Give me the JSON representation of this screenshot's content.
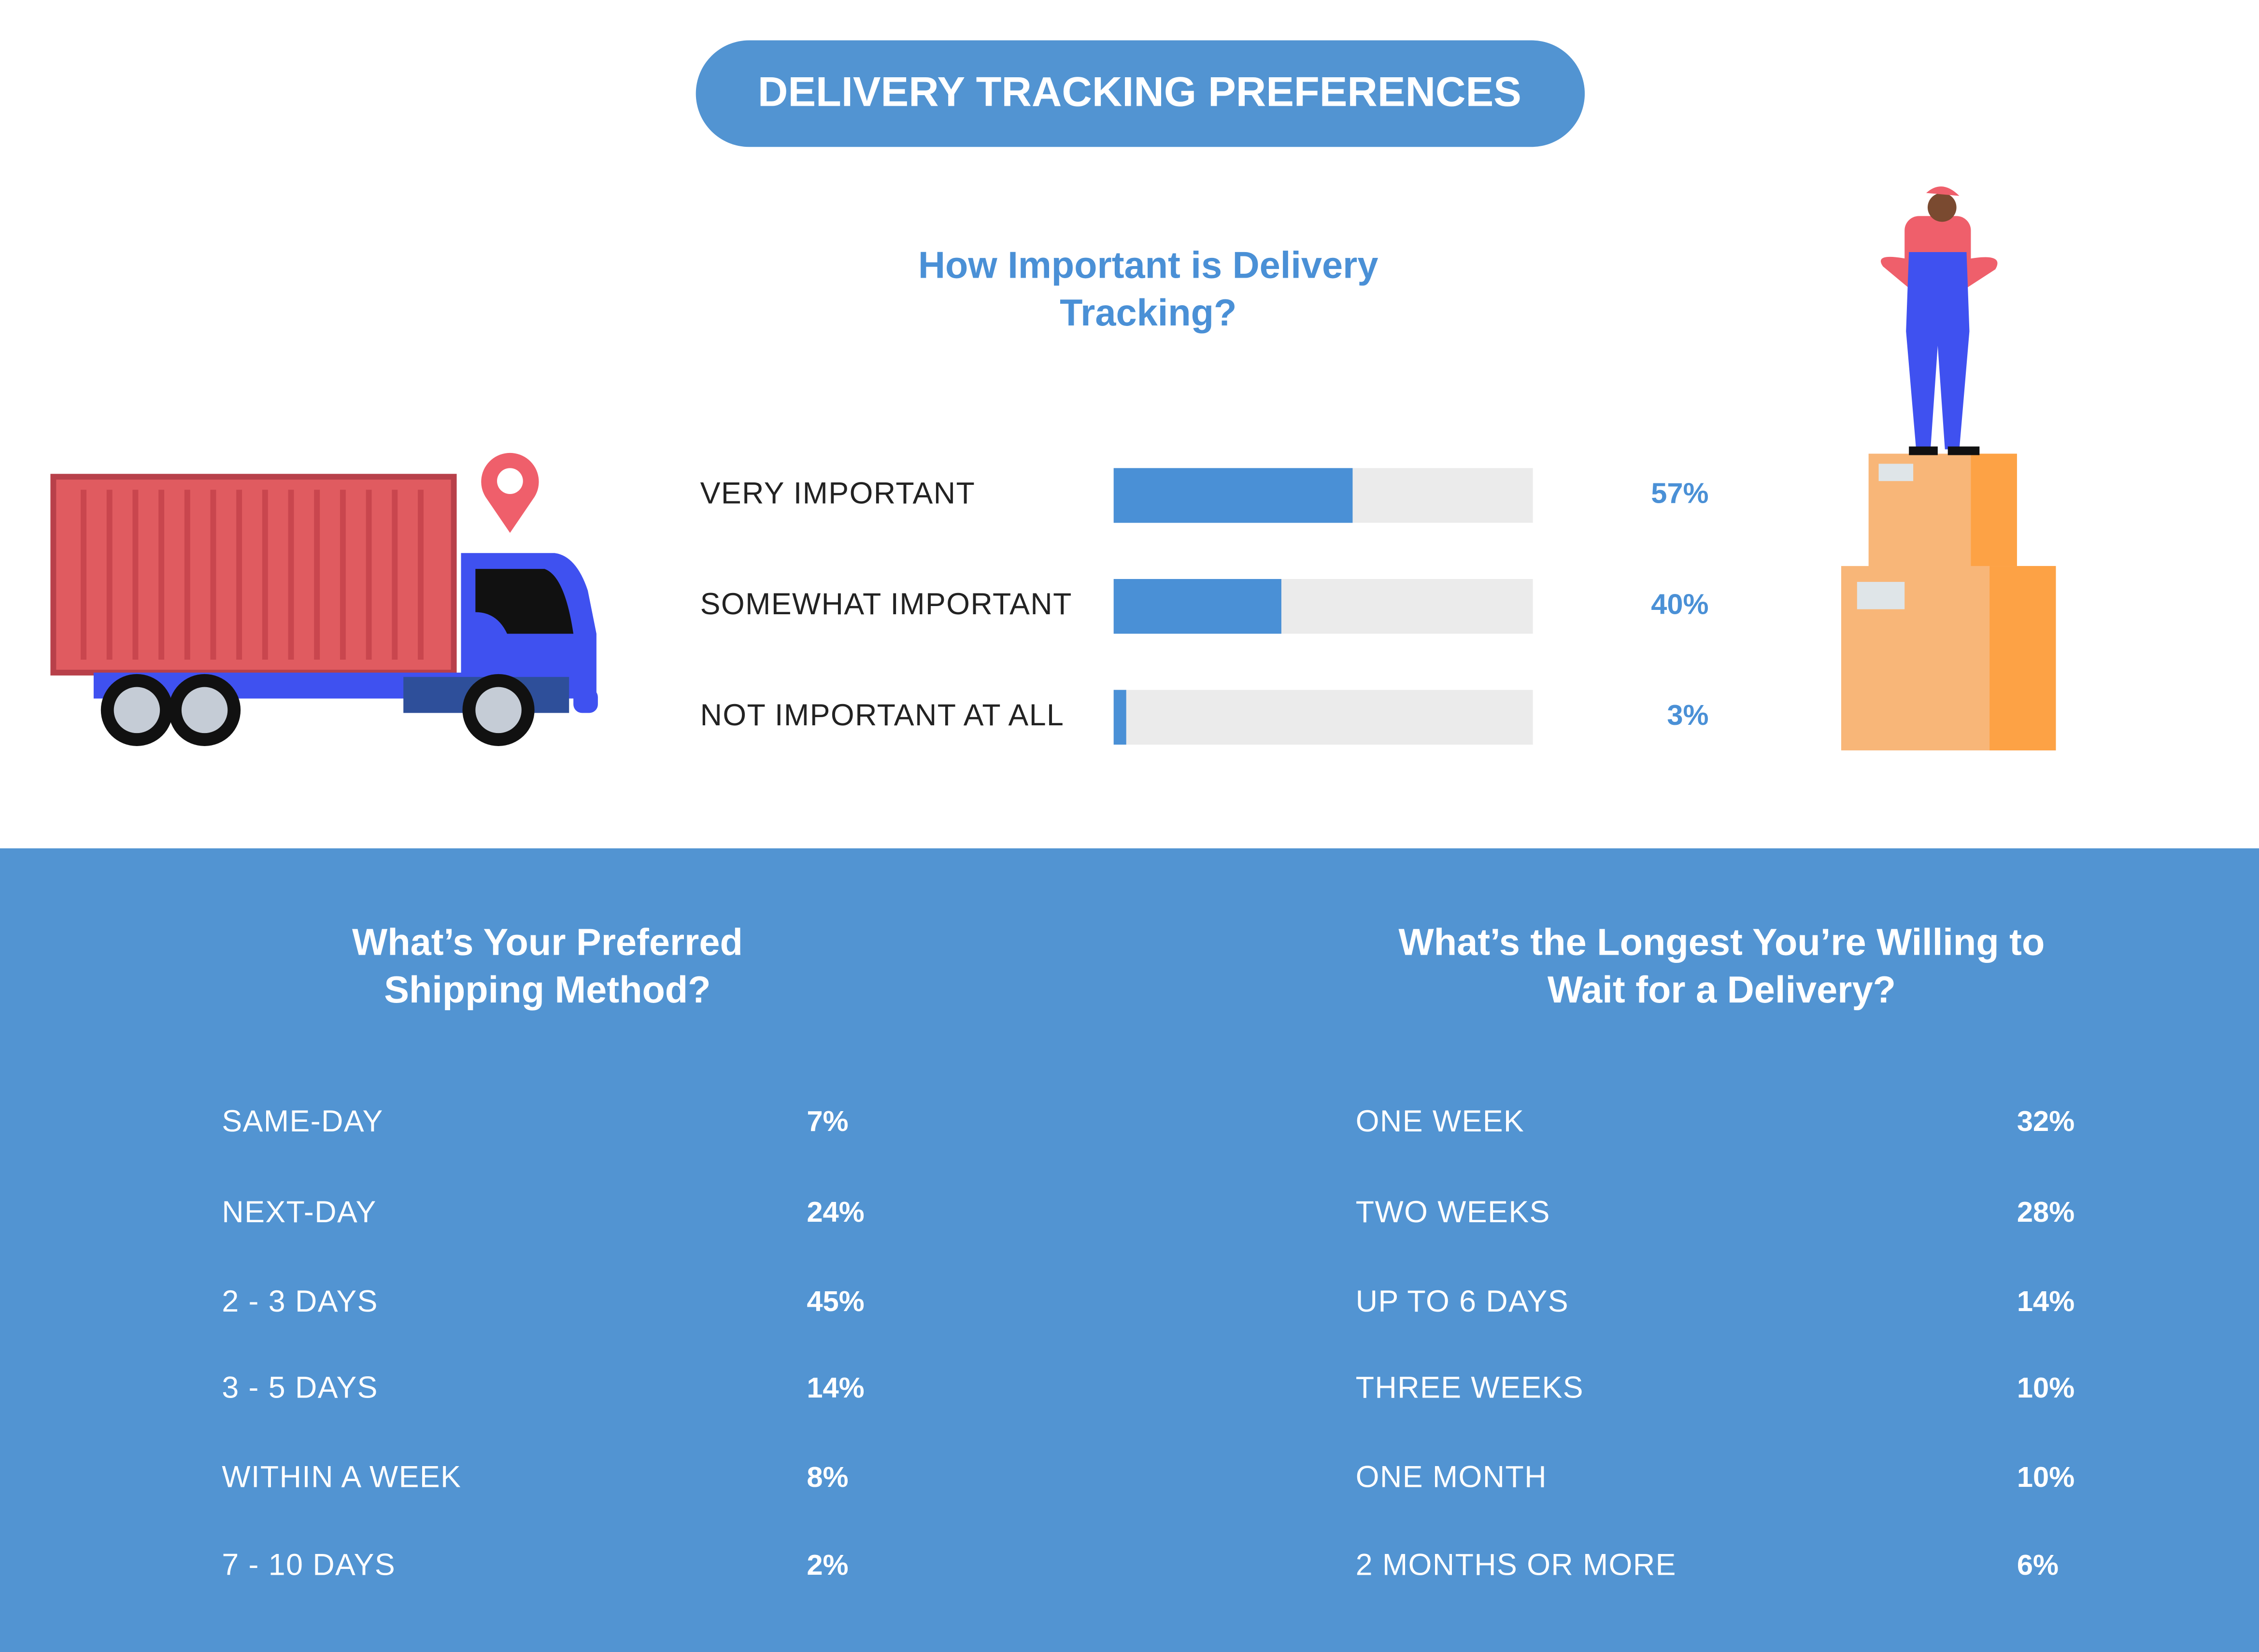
{
  "title": "DELIVERY TRACKING PREFERENCES",
  "chart_data": {
    "type": "bar",
    "title": "How Important is Delivery Tracking?",
    "categories": [
      "VERY IMPORTANT",
      "SOMEWHAT IMPORTANT",
      "NOT IMPORTANT AT ALL"
    ],
    "values": [
      57,
      40,
      3
    ],
    "value_labels": [
      "57%",
      "40%",
      "3%"
    ],
    "xlim": [
      0,
      100
    ],
    "color": "#4a90d6"
  },
  "shipping": {
    "title": "What’s Your Preferred Shipping Method?",
    "rows": [
      [
        "SAME-DAY",
        "7%"
      ],
      [
        "NEXT-DAY",
        "24%"
      ],
      [
        "2 - 3 DAYS",
        "45%"
      ],
      [
        "3 - 5 DAYS",
        "14%"
      ],
      [
        "WITHIN A WEEK",
        "8%"
      ],
      [
        "7 - 10 DAYS",
        "2%"
      ]
    ]
  },
  "wait": {
    "title": "What’s the Longest You’re Willing to Wait for a Delivery?",
    "rows": [
      [
        "ONE WEEK",
        "32%"
      ],
      [
        "TWO WEEKS",
        "28%"
      ],
      [
        "UP TO 6 DAYS",
        "14%"
      ],
      [
        "THREE WEEKS",
        "10%"
      ],
      [
        "ONE MONTH",
        "10%"
      ],
      [
        "2 MONTHS OR MORE",
        "6%"
      ]
    ]
  }
}
